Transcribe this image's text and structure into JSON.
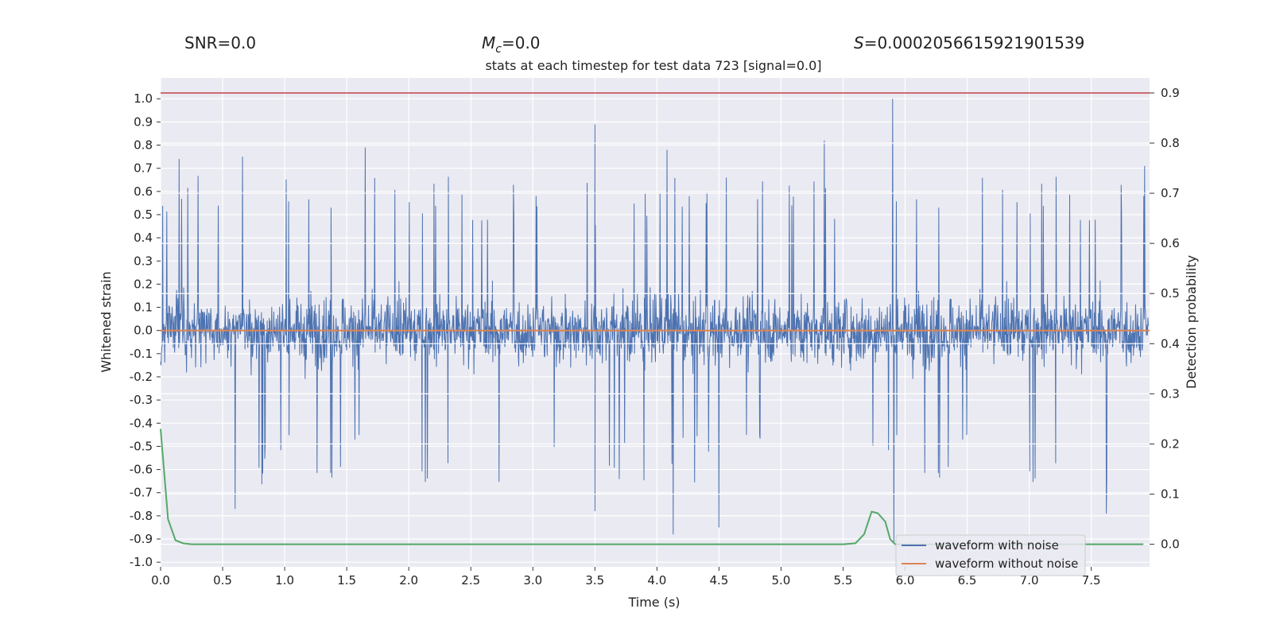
{
  "stats": {
    "snr": "SNR=0.0",
    "mc_symbol": "M",
    "mc_sub": "c",
    "mc_value": "=0.0",
    "s_symbol": "S",
    "s_value": "=0.0002056615921901539"
  },
  "chart_data": {
    "type": "line",
    "title": "stats at each timestep for test data 723 [signal=0.0]",
    "xlabel": "Time (s)",
    "ylabel": "Whitened strain",
    "y2label": "Detection probability",
    "xlim": [
      0.0,
      7.97
    ],
    "ylim": [
      -1.02,
      1.09
    ],
    "y2lim": [
      -0.045,
      0.93
    ],
    "xticks": [
      "0.0",
      "0.5",
      "1.0",
      "1.5",
      "2.0",
      "2.5",
      "3.0",
      "3.5",
      "4.0",
      "4.5",
      "5.0",
      "5.5",
      "6.0",
      "6.5",
      "7.0",
      "7.5"
    ],
    "yticks": [
      "1.0",
      "0.9",
      "0.8",
      "0.7",
      "0.6",
      "0.5",
      "0.4",
      "0.3",
      "0.2",
      "0.1",
      "0.0",
      "-0.1",
      "-0.2",
      "-0.3",
      "-0.4",
      "-0.5",
      "-0.6",
      "-0.7",
      "-0.8",
      "-0.9",
      "-1.0"
    ],
    "y2ticks": [
      "0.9",
      "0.8",
      "0.7",
      "0.6",
      "0.5",
      "0.4",
      "0.3",
      "0.2",
      "0.1",
      "0.0"
    ],
    "threshold": 0.9,
    "grid": true,
    "legend_position": "bottom-right",
    "series": [
      {
        "name": "waveform with noise",
        "color": "#4c72b0",
        "axis": "left",
        "typical_amplitude": 0.4,
        "peaks": [
          {
            "x": 0.15,
            "y": 0.74
          },
          {
            "x": 0.66,
            "y": 0.75
          },
          {
            "x": 1.65,
            "y": 0.79
          },
          {
            "x": 3.5,
            "y": 0.89
          },
          {
            "x": 4.08,
            "y": 0.78
          },
          {
            "x": 5.35,
            "y": 0.82
          },
          {
            "x": 5.9,
            "y": 1.0
          },
          {
            "x": 7.93,
            "y": 0.71
          },
          {
            "x": 0.6,
            "y": -0.77
          },
          {
            "x": 3.5,
            "y": -0.78
          },
          {
            "x": 4.13,
            "y": -0.88
          },
          {
            "x": 4.5,
            "y": -0.85
          },
          {
            "x": 5.91,
            "y": -0.92
          },
          {
            "x": 7.62,
            "y": -0.79
          }
        ]
      },
      {
        "name": "waveform without noise",
        "color": "#dd8452",
        "axis": "left",
        "x": [
          0.0,
          7.97
        ],
        "y": [
          0.0,
          0.0
        ]
      },
      {
        "color": "#55a868",
        "axis": "right",
        "x": [
          0.0,
          0.06,
          0.12,
          0.18,
          0.25,
          0.5,
          1.0,
          2.0,
          3.0,
          4.0,
          5.0,
          5.5,
          5.6,
          5.67,
          5.73,
          5.78,
          5.84,
          5.88,
          5.92,
          5.96,
          6.0,
          6.1,
          6.5,
          7.0,
          7.5,
          7.92
        ],
        "y": [
          0.23,
          0.05,
          0.008,
          0.002,
          0.0,
          0.0,
          0.0,
          0.0,
          0.0,
          0.0,
          0.0,
          0.0,
          0.002,
          0.02,
          0.065,
          0.062,
          0.045,
          0.01,
          0.0,
          0.0,
          0.0,
          0.0,
          0.0,
          0.0,
          0.0,
          0.0
        ]
      },
      {
        "color": "#c44e52",
        "axis": "right",
        "x": [
          0.0,
          7.97
        ],
        "y": [
          0.9,
          0.9
        ]
      }
    ]
  }
}
